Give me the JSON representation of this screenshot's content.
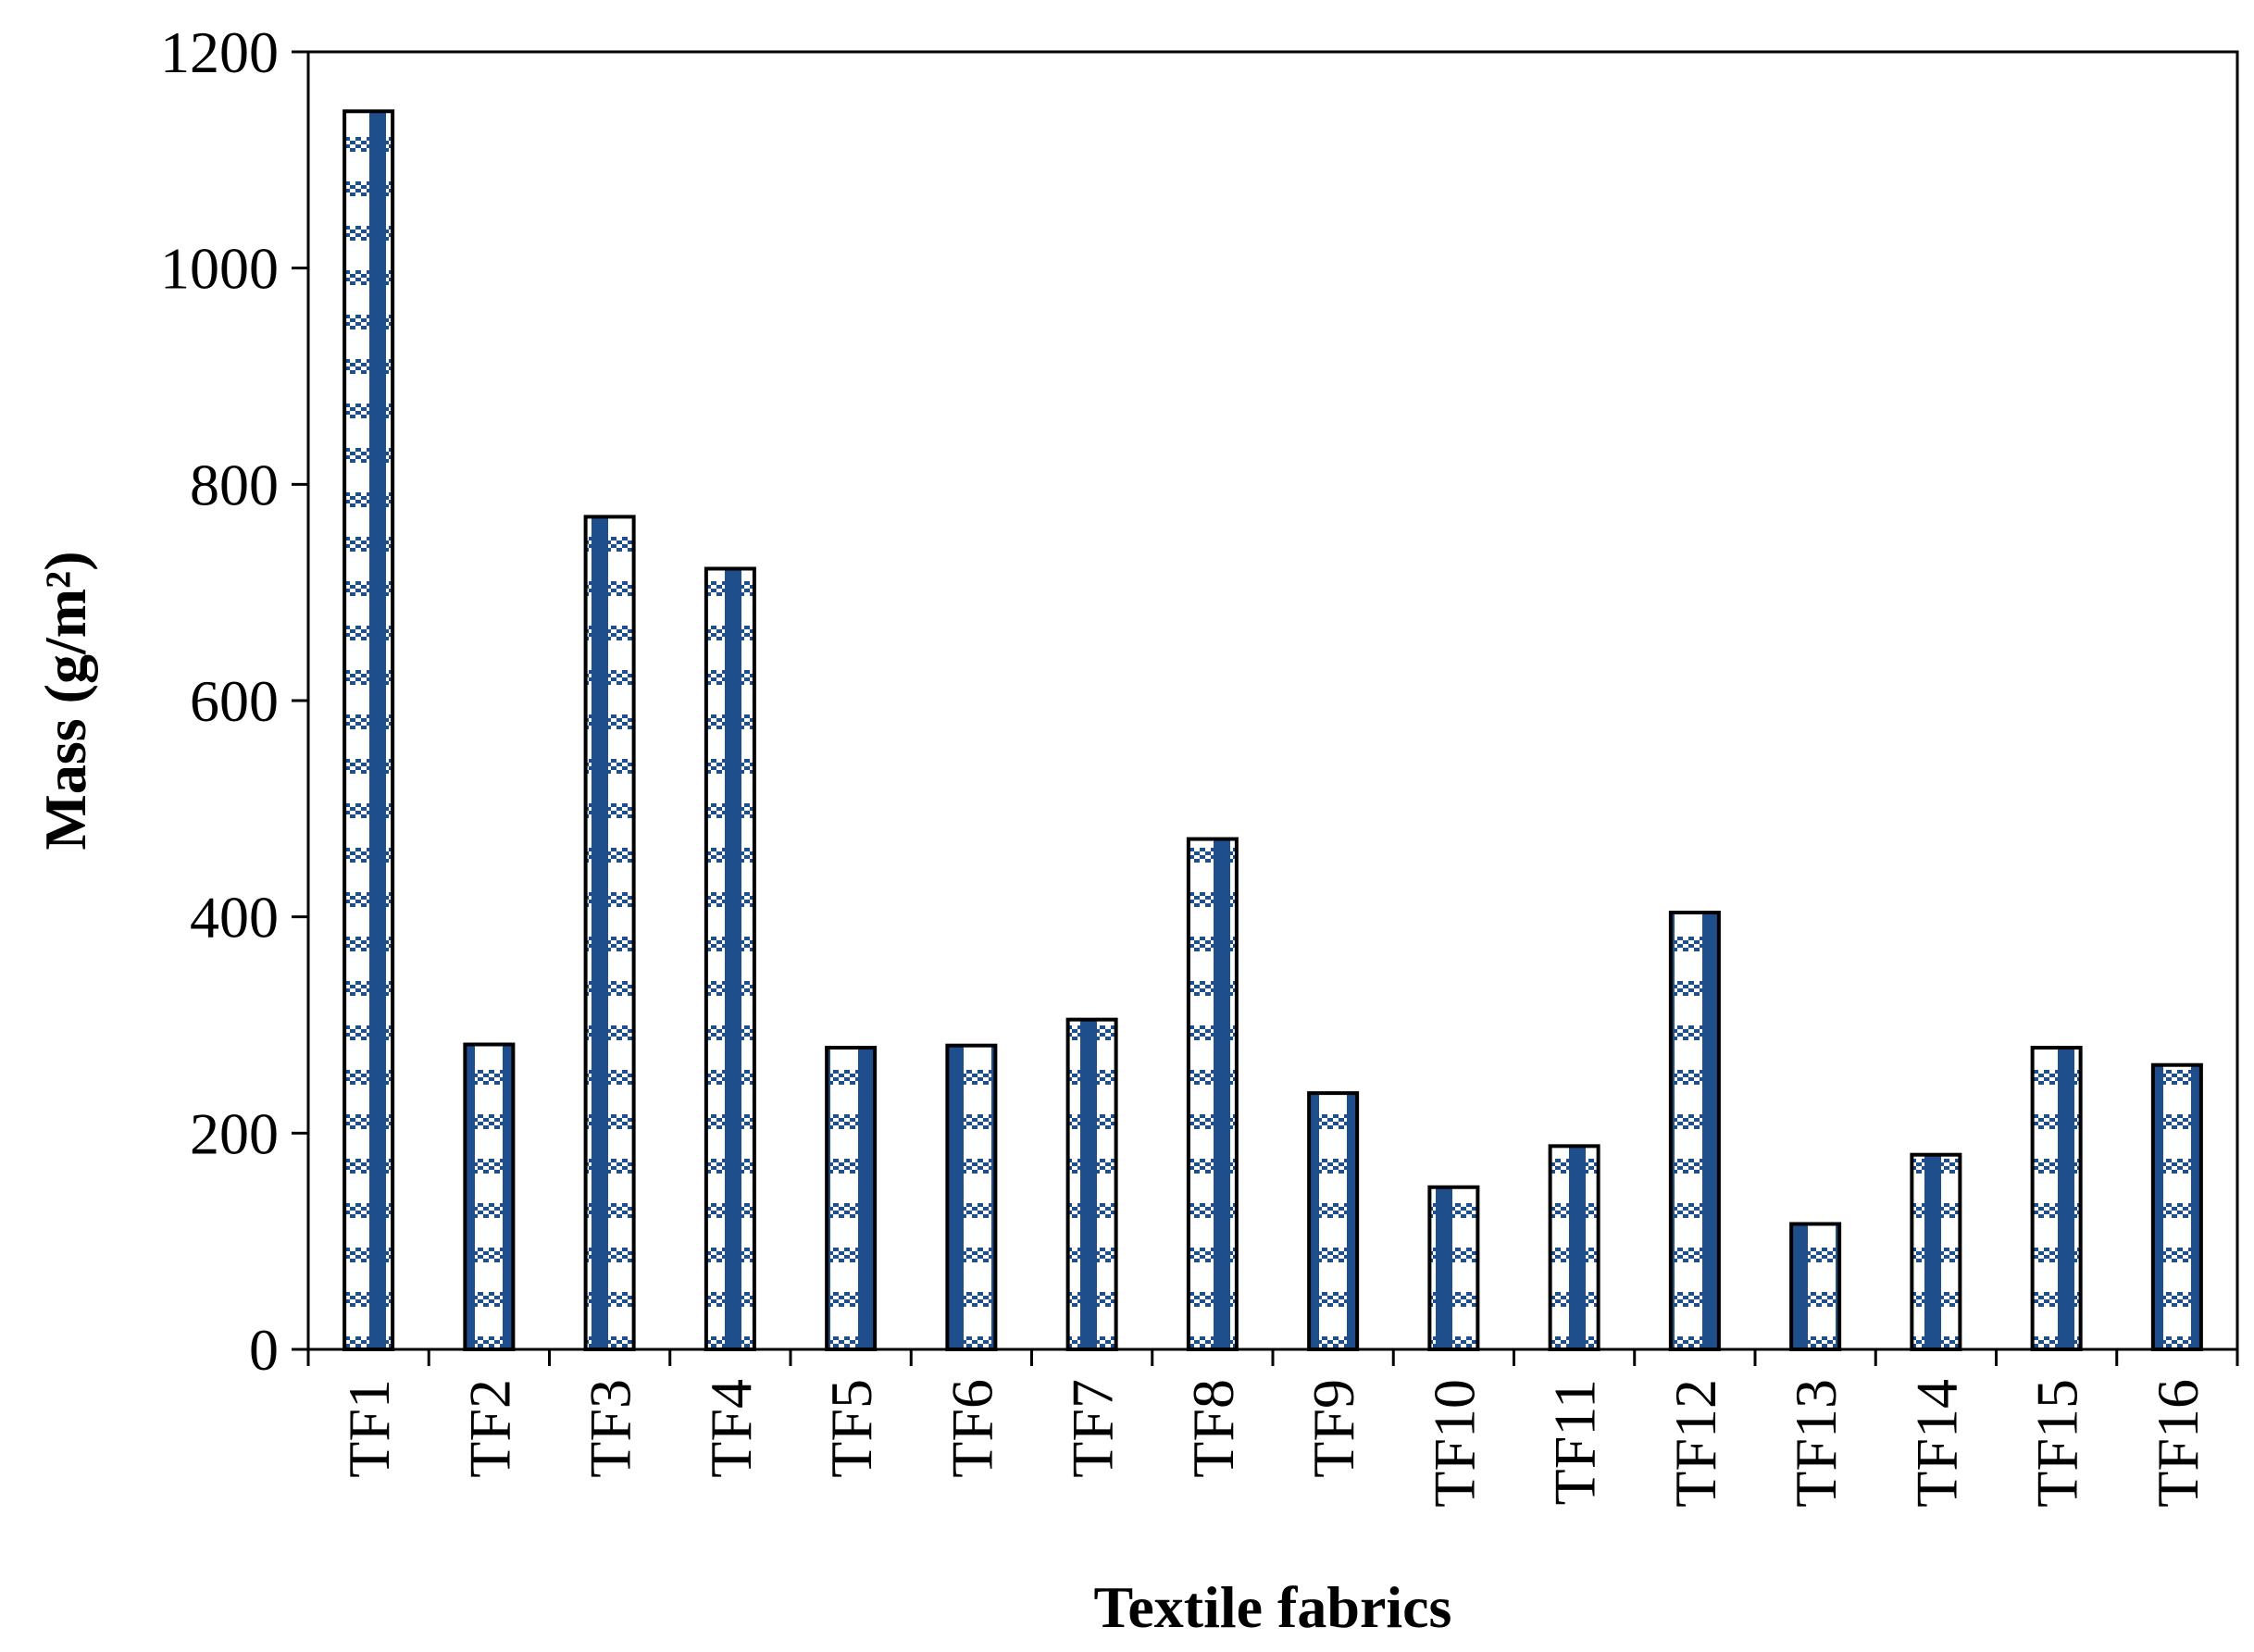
{
  "chart_data": {
    "type": "bar",
    "title": "",
    "xlabel": "Textile fabrics",
    "ylabel": "Mass (g/m²)",
    "categories": [
      "TF1",
      "TF2",
      "TF3",
      "TF4",
      "TF5",
      "TF6",
      "TF7",
      "TF8",
      "TF9",
      "TF10",
      "TF11",
      "TF12",
      "TF13",
      "TF14",
      "TF15",
      "TF16"
    ],
    "values": [
      1145,
      282,
      770,
      722,
      279,
      281,
      305,
      472,
      237,
      150,
      188,
      404,
      116,
      180,
      279,
      263
    ],
    "ylim": [
      0,
      1200
    ],
    "yticks": [
      0,
      200,
      400,
      600,
      800,
      1000,
      1200
    ],
    "grid": false,
    "legend": "none",
    "colors": {
      "bar_fill_dark": "#1f4e8c",
      "bar_fill_light": "#ffffff",
      "bar_outline": "#000000",
      "axis": "#000000"
    }
  }
}
